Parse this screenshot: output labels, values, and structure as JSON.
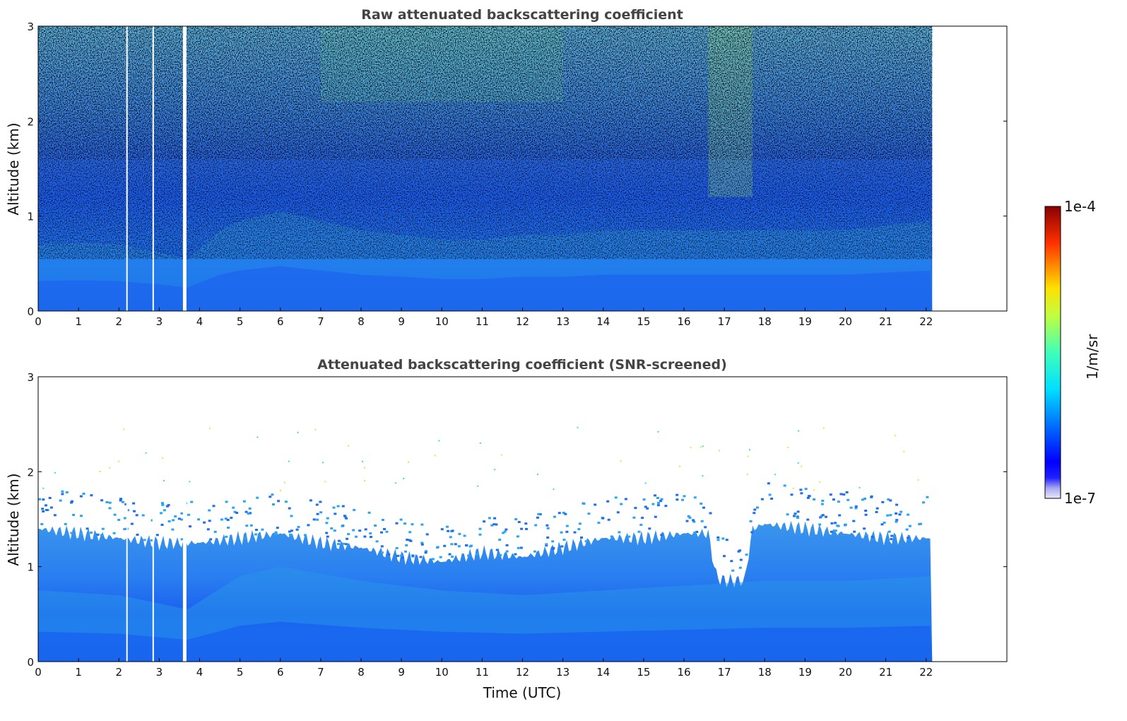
{
  "chart_data": [
    {
      "type": "heatmap",
      "title": "Raw attenuated backscattering coefficient",
      "xlabel": "",
      "ylabel": "Altitude (km)",
      "xlim": [
        0,
        24
      ],
      "ylim": [
        0,
        3
      ],
      "x_ticks": [
        "0",
        "1",
        "2",
        "3",
        "4",
        "5",
        "6",
        "7",
        "8",
        "9",
        "10",
        "11",
        "12",
        "13",
        "14",
        "15",
        "16",
        "17",
        "18",
        "19",
        "20",
        "21",
        "22"
      ],
      "y_ticks": [
        "0",
        "1",
        "2",
        "3"
      ],
      "data_extent_hours": [
        0,
        22.15
      ],
      "gaps_hours": [
        2.2,
        2.85,
        3.63
      ],
      "boundary_layer_top_km": [
        [
          0,
          0.7
        ],
        [
          1,
          0.72
        ],
        [
          2,
          0.7
        ],
        [
          3,
          0.62
        ],
        [
          3.7,
          0.55
        ],
        [
          4.5,
          0.85
        ],
        [
          5,
          0.95
        ],
        [
          6,
          1.05
        ],
        [
          7,
          0.95
        ],
        [
          8,
          0.85
        ],
        [
          9,
          0.8
        ],
        [
          10,
          0.75
        ],
        [
          11,
          0.75
        ],
        [
          12,
          0.8
        ],
        [
          13,
          0.8
        ],
        [
          14,
          0.85
        ],
        [
          15,
          0.85
        ],
        [
          16,
          0.85
        ],
        [
          17,
          0.85
        ],
        [
          18,
          0.85
        ],
        [
          19,
          0.85
        ],
        [
          20,
          0.85
        ],
        [
          21,
          0.9
        ],
        [
          22.15,
          0.95
        ]
      ],
      "noise": "high",
      "grid": false
    },
    {
      "type": "heatmap",
      "title": "Attenuated backscattering coefficient (SNR-screened)",
      "xlabel": "Time (UTC)",
      "ylabel": "Altitude (km)",
      "xlim": [
        0,
        24
      ],
      "ylim": [
        0,
        3
      ],
      "x_ticks": [
        "0",
        "1",
        "2",
        "3",
        "4",
        "5",
        "6",
        "7",
        "8",
        "9",
        "10",
        "11",
        "12",
        "13",
        "14",
        "15",
        "16",
        "17",
        "18",
        "19",
        "20",
        "21",
        "22"
      ],
      "y_ticks": [
        "0",
        "1",
        "2",
        "3"
      ],
      "data_extent_hours": [
        0,
        22.15
      ],
      "gaps_hours": [
        2.2,
        2.85,
        3.63
      ],
      "boundary_layer_top_km": [
        [
          0,
          1.4
        ],
        [
          1,
          1.35
        ],
        [
          2,
          1.3
        ],
        [
          3,
          1.25
        ],
        [
          4,
          1.25
        ],
        [
          5,
          1.3
        ],
        [
          6,
          1.35
        ],
        [
          7,
          1.25
        ],
        [
          8,
          1.2
        ],
        [
          9,
          1.1
        ],
        [
          10,
          1.05
        ],
        [
          11,
          1.15
        ],
        [
          12,
          1.1
        ],
        [
          13,
          1.2
        ],
        [
          14,
          1.3
        ],
        [
          15,
          1.3
        ],
        [
          16,
          1.35
        ],
        [
          16.6,
          1.35
        ],
        [
          16.8,
          0.9
        ],
        [
          17,
          0.85
        ],
        [
          17.5,
          0.85
        ],
        [
          17.7,
          1.4
        ],
        [
          18,
          1.45
        ],
        [
          19,
          1.4
        ],
        [
          20,
          1.35
        ],
        [
          21,
          1.3
        ],
        [
          22.15,
          1.3
        ]
      ],
      "noise": "screened",
      "grid": false
    }
  ],
  "colorbar": {
    "label": "1/m/sr",
    "min_label": "1e-7",
    "max_label": "1e-4",
    "colormap": "jet",
    "low_end_colors": [
      "#e6e6fa",
      "#b7b7f0"
    ]
  }
}
